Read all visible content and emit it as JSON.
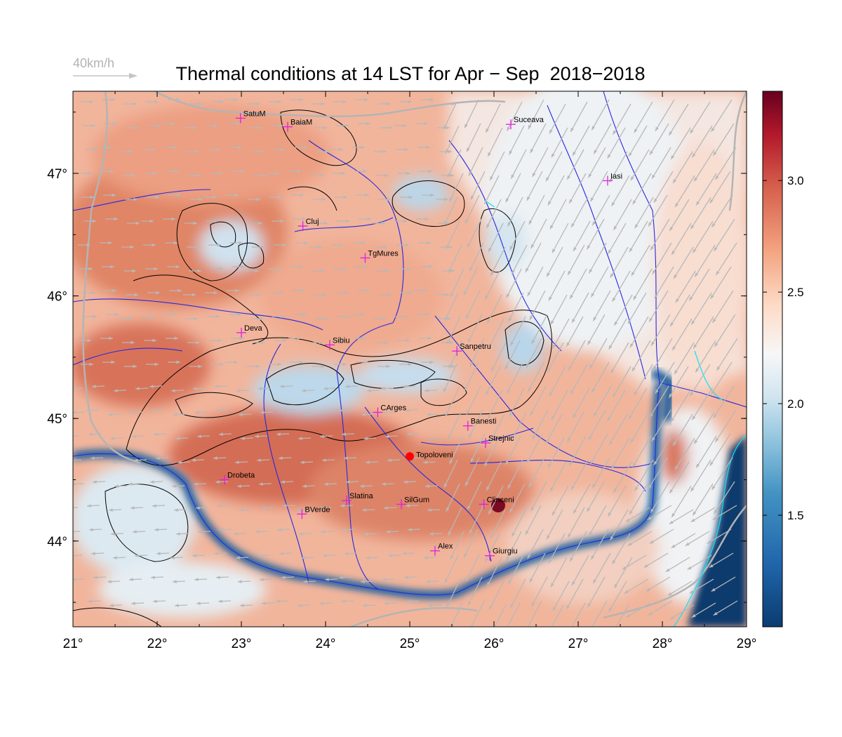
{
  "title": "Thermal conditions at 14 LST for Apr − Sep  2018−2018",
  "wind_key": {
    "label": "40km/h"
  },
  "x_axis": {
    "ticks": [
      "21°",
      "22°",
      "23°",
      "24°",
      "25°",
      "26°",
      "27°",
      "28°",
      "29°"
    ],
    "values": [
      21,
      22,
      23,
      24,
      25,
      26,
      27,
      28,
      29
    ],
    "range": [
      21,
      29
    ]
  },
  "y_axis": {
    "ticks": [
      "44°",
      "45°",
      "46°",
      "47°"
    ],
    "values": [
      44,
      45,
      46,
      47
    ],
    "range": [
      43.3,
      47.67
    ]
  },
  "colorbar": {
    "ticks": [
      "1.5",
      "2.0",
      "2.5",
      "3.0"
    ],
    "values": [
      1.5,
      2.0,
      2.5,
      3.0
    ],
    "range": [
      1.0,
      3.4
    ],
    "colormap": "RdBu_r",
    "colors": [
      "#0a3c70",
      "#2166ac",
      "#4393c3",
      "#92c5de",
      "#d1e5f0",
      "#f7f7f7",
      "#fddbc7",
      "#f4a582",
      "#d6604d",
      "#b2182b",
      "#67001f"
    ]
  },
  "cities": [
    {
      "name": "SatuM",
      "lon": 22.99,
      "lat": 47.45
    },
    {
      "name": "BaiaM",
      "lon": 23.55,
      "lat": 47.38
    },
    {
      "name": "Suceava",
      "lon": 26.2,
      "lat": 47.4
    },
    {
      "name": "Iasi",
      "lon": 27.35,
      "lat": 46.94
    },
    {
      "name": "Cluj",
      "lon": 23.73,
      "lat": 46.57
    },
    {
      "name": "TgMures",
      "lon": 24.47,
      "lat": 46.31
    },
    {
      "name": "Deva",
      "lon": 23.0,
      "lat": 45.7
    },
    {
      "name": "Sibiu",
      "lon": 24.05,
      "lat": 45.6
    },
    {
      "name": "Sanpetru",
      "lon": 25.56,
      "lat": 45.55
    },
    {
      "name": "CArges",
      "lon": 24.62,
      "lat": 45.05
    },
    {
      "name": "Banesti",
      "lon": 25.69,
      "lat": 44.94
    },
    {
      "name": "Strejnic",
      "lon": 25.9,
      "lat": 44.8
    },
    {
      "name": "Drobeta",
      "lon": 22.8,
      "lat": 44.5
    },
    {
      "name": "Slatina",
      "lon": 24.25,
      "lat": 44.33
    },
    {
      "name": "SilGum",
      "lon": 24.9,
      "lat": 44.3
    },
    {
      "name": "Clinceni",
      "lon": 25.88,
      "lat": 44.3
    },
    {
      "name": "BVerde",
      "lon": 23.72,
      "lat": 44.22
    },
    {
      "name": "Alex",
      "lon": 25.3,
      "lat": 43.92
    },
    {
      "name": "Giurgiu",
      "lon": 25.95,
      "lat": 43.88
    }
  ],
  "highlight_station": {
    "name": "Topoloveni",
    "lon": 25.0,
    "lat": 44.69,
    "color": "#ff0000"
  },
  "colors": {
    "rivers": "#2020dd",
    "borders": "#b4b4b4",
    "contours": "#000000",
    "coast": "#00e5ff",
    "cities": "#e020e0",
    "wind": "#b8b8b8"
  }
}
